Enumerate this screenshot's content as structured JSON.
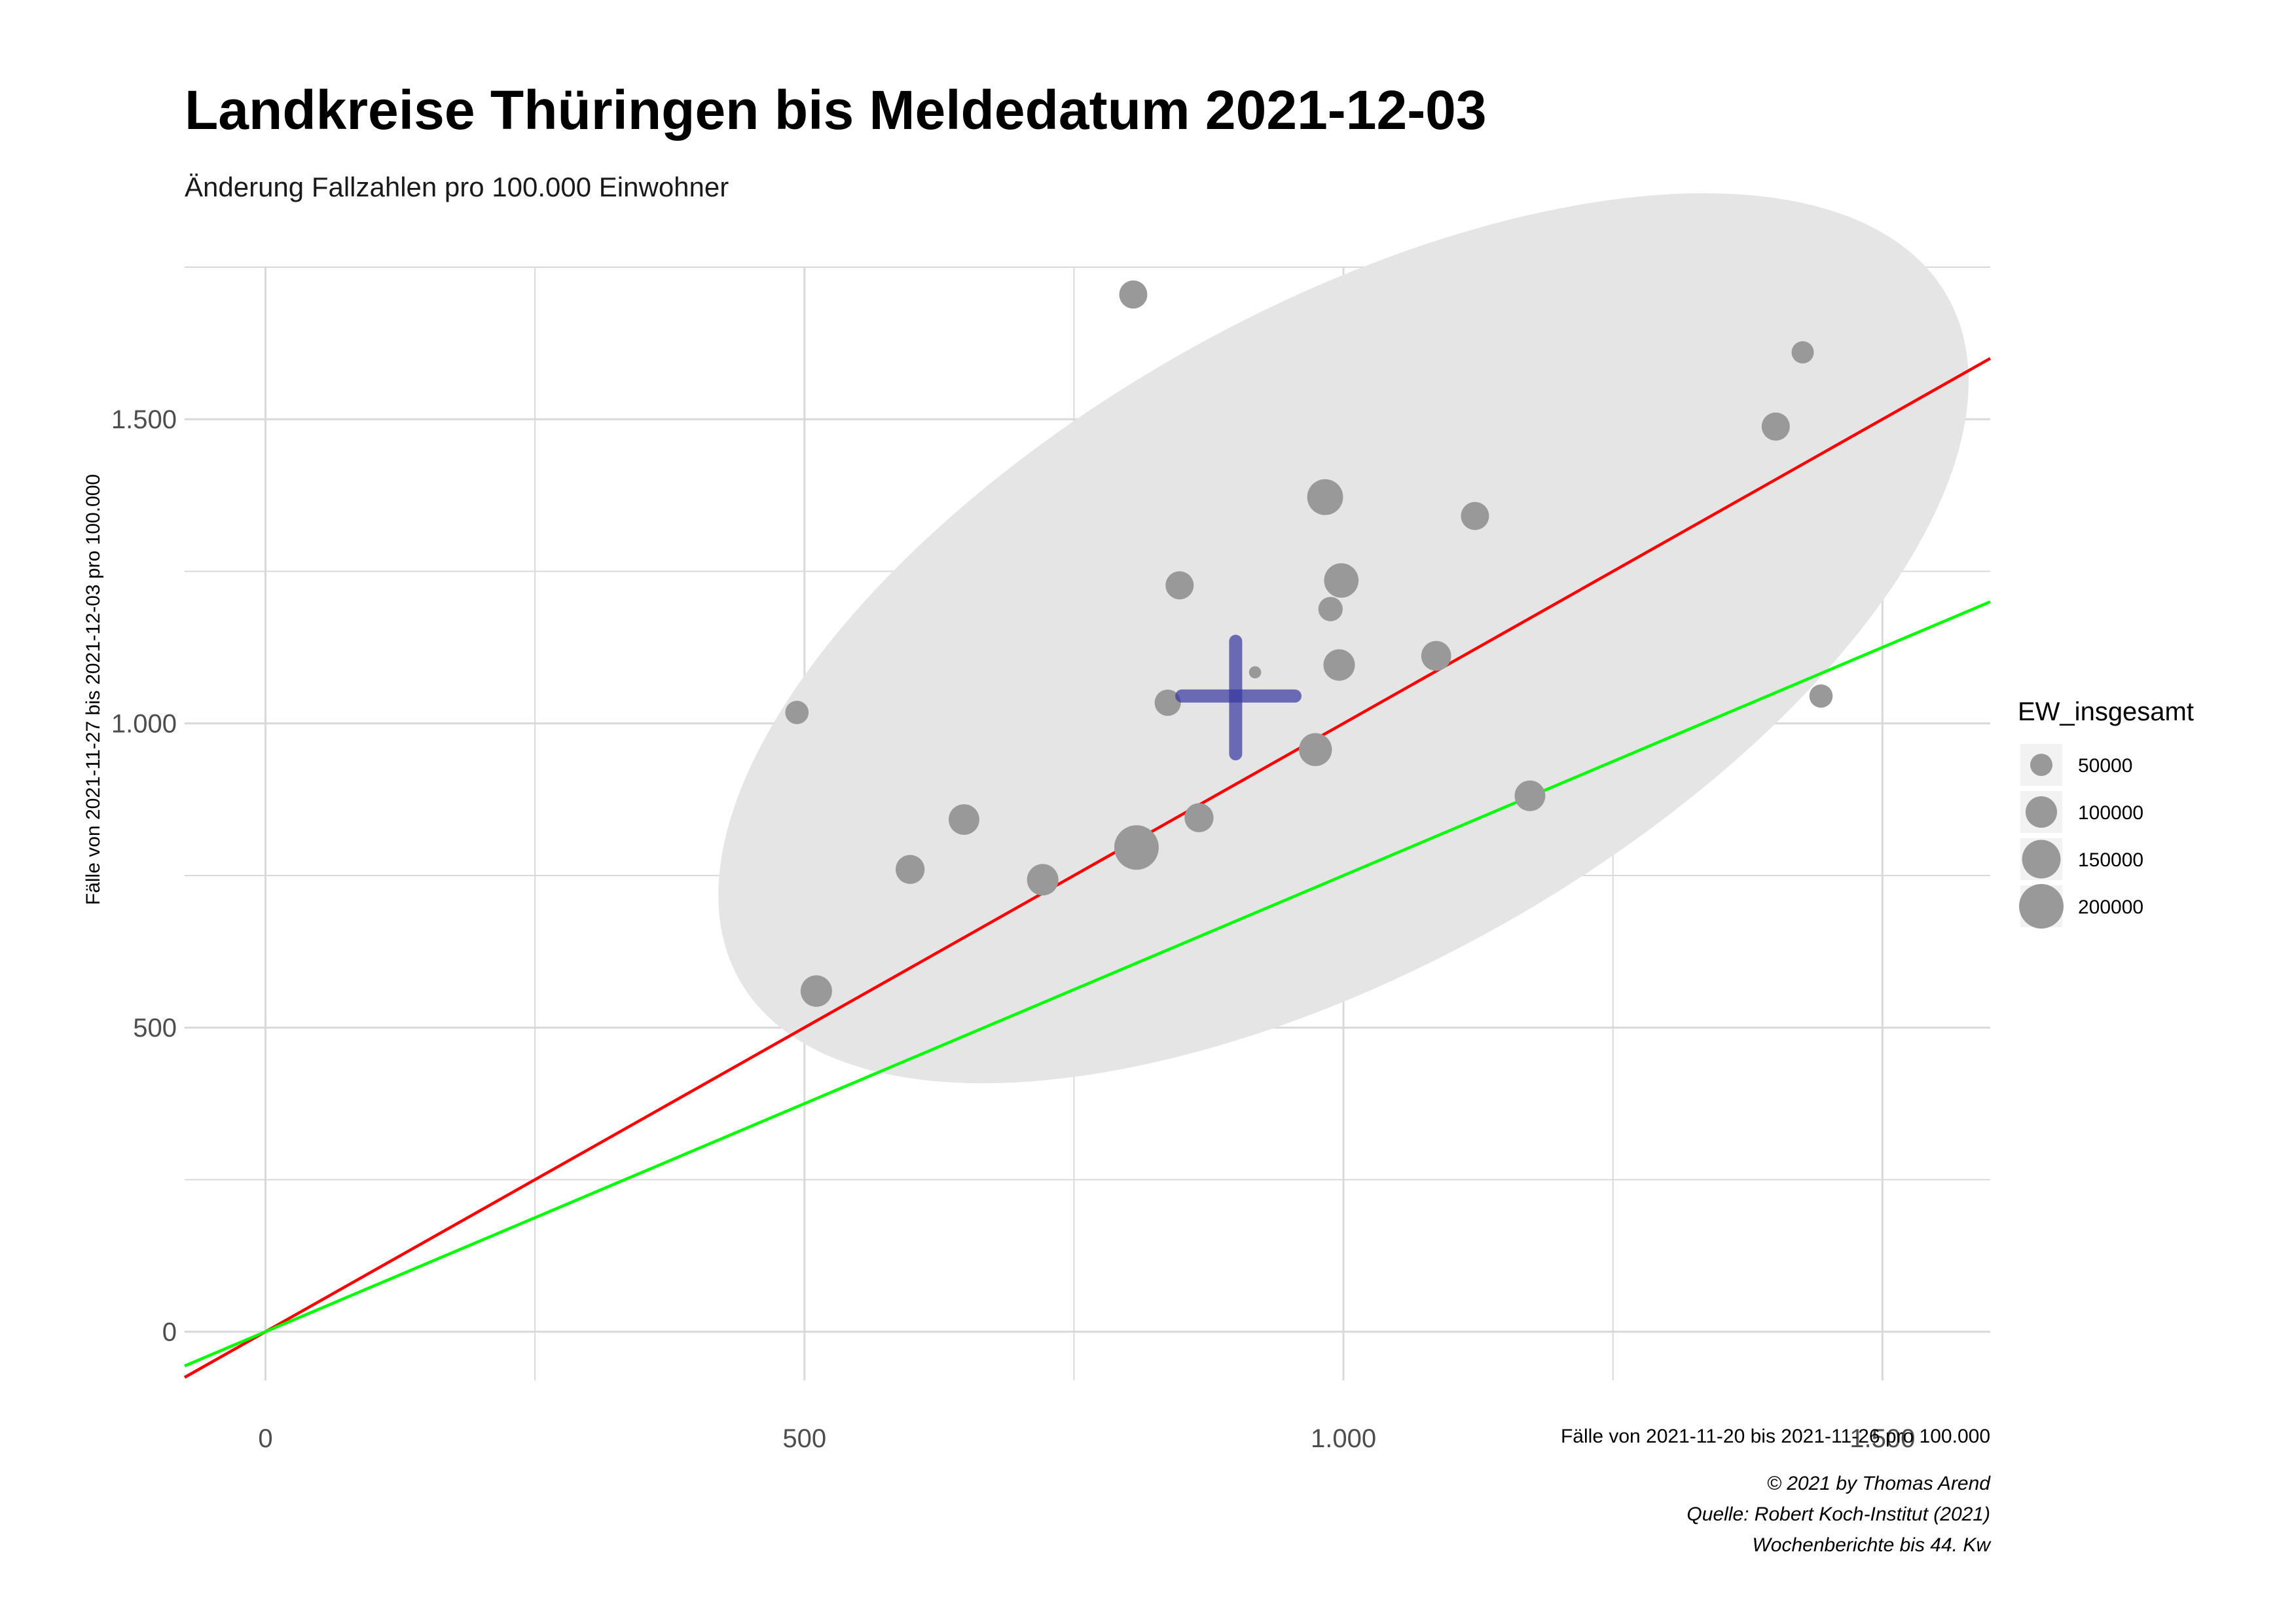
{
  "chart_data": {
    "type": "scatter",
    "title": "Landkreise Thüringen bis Meldedatum 2021-12-03",
    "subtitle": "Änderung Fallzahlen pro 100.000 Einwohner",
    "xlabel": "Fälle von 2021-11-20 bis 2021-11-26 pro 100.000",
    "ylabel": "Fälle von 2021-11-27 bis 2021-12-03 pro 100.000",
    "xlim": [
      -75,
      1600
    ],
    "ylim": [
      -80,
      1750
    ],
    "x_ticks": [
      0,
      500,
      1000,
      1500
    ],
    "x_tick_labels": [
      "0",
      "500",
      "1.000",
      "1.500"
    ],
    "y_ticks": [
      0,
      500,
      1000,
      1500
    ],
    "y_tick_labels": [
      "0",
      "500",
      "1.000",
      "1.500"
    ],
    "grid": true,
    "points": [
      {
        "x": 805,
        "y": 1705,
        "ew": 80000
      },
      {
        "x": 1426,
        "y": 1610,
        "ew": 50000
      },
      {
        "x": 1401,
        "y": 1488,
        "ew": 80000
      },
      {
        "x": 983,
        "y": 1372,
        "ew": 130000
      },
      {
        "x": 1122,
        "y": 1341,
        "ew": 80000
      },
      {
        "x": 998,
        "y": 1235,
        "ew": 120000
      },
      {
        "x": 848,
        "y": 1227,
        "ew": 80000
      },
      {
        "x": 988,
        "y": 1188,
        "ew": 60000
      },
      {
        "x": 1086,
        "y": 1111,
        "ew": 90000
      },
      {
        "x": 996,
        "y": 1096,
        "ew": 100000
      },
      {
        "x": 918,
        "y": 1084,
        "ew": 15000
      },
      {
        "x": 1443,
        "y": 1045,
        "ew": 55000
      },
      {
        "x": 837,
        "y": 1034,
        "ew": 70000
      },
      {
        "x": 493,
        "y": 1018,
        "ew": 55000
      },
      {
        "x": 974,
        "y": 957,
        "ew": 110000
      },
      {
        "x": 1173,
        "y": 881,
        "ew": 95000
      },
      {
        "x": 648,
        "y": 842,
        "ew": 95000
      },
      {
        "x": 866,
        "y": 845,
        "ew": 85000
      },
      {
        "x": 808,
        "y": 796,
        "ew": 200000
      },
      {
        "x": 598,
        "y": 760,
        "ew": 85000
      },
      {
        "x": 721,
        "y": 743,
        "ew": 100000
      },
      {
        "x": 511,
        "y": 560,
        "ew": 100000
      }
    ],
    "mean_cross": {
      "x": 900,
      "y": 1045,
      "x_range": [
        850,
        955
      ],
      "y_range": [
        950,
        1135
      ]
    },
    "reference_lines": [
      {
        "name": "identity",
        "slope": 1.0,
        "color": "#ff0000"
      },
      {
        "name": "halving",
        "slope": 0.75,
        "color": "#00ff00"
      }
    ],
    "ellipse": {
      "center_x": 1000,
      "center_y": 1140,
      "fill": "#e5e5e5"
    },
    "legend": {
      "title": "EW_insgesamt",
      "entries": [
        {
          "label": "50000",
          "value": 50000
        },
        {
          "label": "100000",
          "value": 100000
        },
        {
          "label": "150000",
          "value": 150000
        },
        {
          "label": "200000",
          "value": 200000
        }
      ],
      "position": "right"
    },
    "caption_lines": [
      "© 2021 by Thomas Arend",
      "Quelle: Robert Koch-Institut (2021)",
      "Wochenberichte bis 44. Kw"
    ],
    "colors": {
      "point": "#999999",
      "cross": "#3636a0",
      "ellipse": "#e5e5e5",
      "grid": "#d9d9d9"
    }
  }
}
